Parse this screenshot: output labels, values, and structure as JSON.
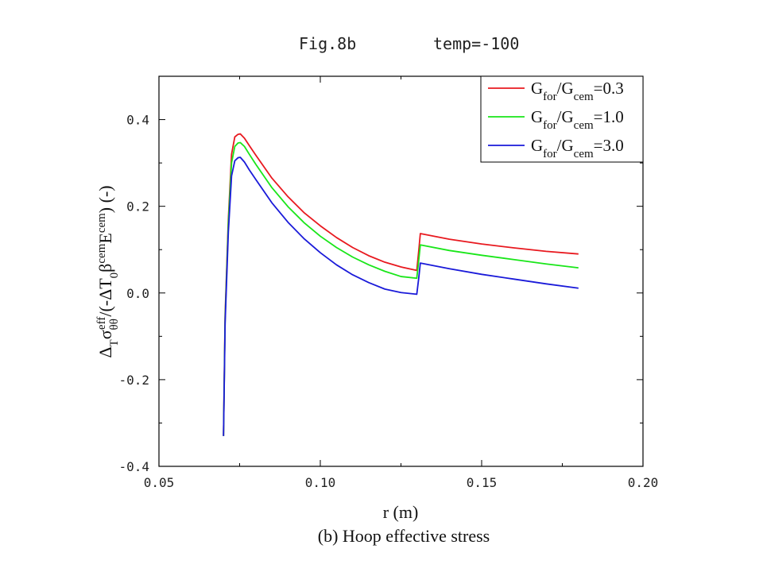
{
  "chart_data": {
    "type": "line",
    "title_left": "Fig.8b",
    "title_right": "temp=-100",
    "xlabel": "r (m)",
    "ylabel": {
      "base": "Δ",
      "base_sub": "T",
      "sigma": "σ",
      "sigma_sup": "eff",
      "sigma_sub": "θθ",
      "mid": "/(-ΔT",
      "mid_sub": "0",
      "beta": "β",
      "beta_sup": "cem",
      "e": "E",
      "e_sup": "cem",
      "tail": ") (-)"
    },
    "caption": "(b) Hoop effective stress",
    "xlim": [
      0.05,
      0.2
    ],
    "ylim": [
      -0.4,
      0.5
    ],
    "xticks": [
      0.05,
      0.1,
      0.15,
      0.2
    ],
    "xtick_labels": [
      "0.05",
      "0.10",
      "0.15",
      "0.20"
    ],
    "yticks": [
      -0.4,
      -0.2,
      0.0,
      0.2,
      0.4
    ],
    "ytick_labels": [
      "-0.4",
      "-0.2",
      "0.0",
      "0.2",
      "0.4"
    ],
    "legend_position": "top-right",
    "series": [
      {
        "name": "G_for/G_cem=0.3",
        "legend": {
          "g": "G",
          "sub1": "for",
          "slash": "/G",
          "sub2": "cem",
          "tail": "=0.3"
        },
        "color": "#e8191f",
        "x": [
          0.07,
          0.0705,
          0.0715,
          0.0725,
          0.0735,
          0.0745,
          0.0752,
          0.0765,
          0.078,
          0.08,
          0.085,
          0.09,
          0.095,
          0.1,
          0.105,
          0.11,
          0.115,
          0.12,
          0.125,
          0.1299,
          0.1305,
          0.131,
          0.14,
          0.15,
          0.16,
          0.17,
          0.18
        ],
        "y": [
          -0.33,
          -0.05,
          0.17,
          0.32,
          0.36,
          0.366,
          0.367,
          0.357,
          0.34,
          0.318,
          0.265,
          0.222,
          0.185,
          0.155,
          0.128,
          0.105,
          0.086,
          0.071,
          0.06,
          0.052,
          0.097,
          0.137,
          0.124,
          0.113,
          0.104,
          0.096,
          0.09
        ]
      },
      {
        "name": "G_for/G_cem=1.0",
        "legend": {
          "g": "G",
          "sub1": "for",
          "slash": "/G",
          "sub2": "cem",
          "tail": "=1.0"
        },
        "color": "#19e619",
        "x": [
          0.07,
          0.0705,
          0.0715,
          0.0725,
          0.0735,
          0.0745,
          0.0752,
          0.0765,
          0.078,
          0.08,
          0.085,
          0.09,
          0.095,
          0.1,
          0.105,
          0.11,
          0.115,
          0.12,
          0.125,
          0.1299,
          0.1305,
          0.131,
          0.14,
          0.15,
          0.16,
          0.17,
          0.18
        ],
        "y": [
          -0.33,
          -0.06,
          0.16,
          0.3,
          0.338,
          0.346,
          0.347,
          0.338,
          0.32,
          0.297,
          0.243,
          0.199,
          0.162,
          0.131,
          0.105,
          0.083,
          0.065,
          0.05,
          0.038,
          0.034,
          0.075,
          0.111,
          0.098,
          0.087,
          0.077,
          0.067,
          0.058
        ]
      },
      {
        "name": "G_for/G_cem=3.0",
        "legend": {
          "g": "G",
          "sub1": "for",
          "slash": "/G",
          "sub2": "cem",
          "tail": "=3.0"
        },
        "color": "#1a1ad9",
        "x": [
          0.07,
          0.0705,
          0.0715,
          0.0725,
          0.0735,
          0.0745,
          0.0752,
          0.0765,
          0.078,
          0.08,
          0.085,
          0.09,
          0.095,
          0.1,
          0.105,
          0.11,
          0.115,
          0.12,
          0.125,
          0.1299,
          0.1305,
          0.131,
          0.14,
          0.15,
          0.16,
          0.17,
          0.18
        ],
        "y": [
          -0.33,
          -0.07,
          0.14,
          0.27,
          0.305,
          0.312,
          0.313,
          0.302,
          0.284,
          0.262,
          0.208,
          0.163,
          0.125,
          0.093,
          0.065,
          0.042,
          0.024,
          0.009,
          0.001,
          -0.003,
          0.034,
          0.069,
          0.056,
          0.043,
          0.032,
          0.021,
          0.011
        ]
      }
    ]
  }
}
